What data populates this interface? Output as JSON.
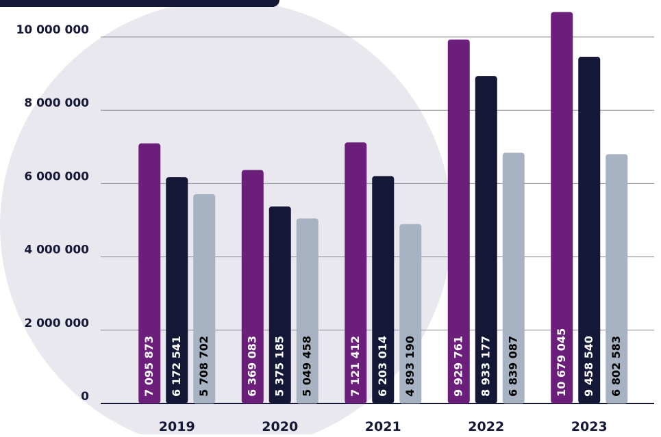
{
  "chart_data": {
    "type": "bar",
    "categories": [
      "2019",
      "2020",
      "2021",
      "2022",
      "2023"
    ],
    "series": [
      {
        "color": "#6b1f7b",
        "values": [
          7095873,
          6369083,
          7121412,
          9929761,
          10679045
        ],
        "value_labels": [
          "7 095 873",
          "6 369 083",
          "7 121 412",
          "9 929 761",
          "10 679 045"
        ]
      },
      {
        "color": "#141736",
        "values": [
          6172541,
          5375185,
          6203014,
          8933177,
          9458540
        ],
        "value_labels": [
          "6 172 541",
          "5 375 185",
          "6 203 014",
          "8 933 177",
          "9 458 540"
        ]
      },
      {
        "color": "#a7b3c2",
        "values": [
          5708702,
          5049458,
          4893190,
          6839087,
          6802583
        ],
        "value_labels": [
          "5 708 702",
          "5 049 458",
          "4 893 190",
          "6 839 087",
          "6 802 583"
        ]
      }
    ],
    "ylim": [
      0,
      11000000
    ],
    "yticks": [
      0,
      {
        "value": 2000000,
        "label": "2 000 000"
      },
      {
        "value": 4000000,
        "label": "4 000 000"
      },
      {
        "value": 6000000,
        "label": "6 000 000"
      },
      {
        "value": 8000000,
        "label": "8 000 000"
      },
      {
        "value": 10000000,
        "label": "10 000 000"
      }
    ],
    "grid": true
  }
}
